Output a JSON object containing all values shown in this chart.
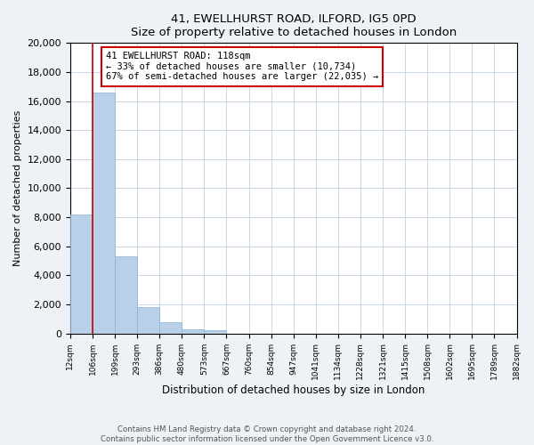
{
  "title": "41, EWELLHURST ROAD, ILFORD, IG5 0PD",
  "subtitle": "Size of property relative to detached houses in London",
  "xlabel": "Distribution of detached houses by size in London",
  "ylabel": "Number of detached properties",
  "bar_values": [
    8200,
    16600,
    5300,
    1800,
    750,
    280,
    210,
    0,
    0,
    0,
    0,
    0,
    0,
    0,
    0,
    0,
    0,
    0,
    0,
    0
  ],
  "bar_labels": [
    "12sqm",
    "106sqm",
    "199sqm",
    "293sqm",
    "386sqm",
    "480sqm",
    "573sqm",
    "667sqm",
    "760sqm",
    "854sqm",
    "947sqm",
    "1041sqm",
    "1134sqm",
    "1228sqm",
    "1321sqm",
    "1415sqm",
    "1508sqm",
    "1602sqm",
    "1695sqm",
    "1789sqm",
    "1882sqm"
  ],
  "bar_color": "#b8d0e8",
  "bar_edge_color": "#89b0d0",
  "annotation_box_color": "#ffffff",
  "annotation_box_edge": "#cc0000",
  "annotation_title": "41 EWELLHURST ROAD: 118sqm",
  "annotation_line1": "← 33% of detached houses are smaller (10,734)",
  "annotation_line2": "67% of semi-detached houses are larger (22,035) →",
  "ylim": [
    0,
    20000
  ],
  "yticks": [
    0,
    2000,
    4000,
    6000,
    8000,
    10000,
    12000,
    14000,
    16000,
    18000,
    20000
  ],
  "footer_line1": "Contains HM Land Registry data © Crown copyright and database right 2024.",
  "footer_line2": "Contains public sector information licensed under the Open Government Licence v3.0.",
  "background_color": "#eef2f7",
  "plot_bg_color": "#ffffff",
  "grid_color": "#c8d8e8",
  "red_line_color": "#cc0000"
}
